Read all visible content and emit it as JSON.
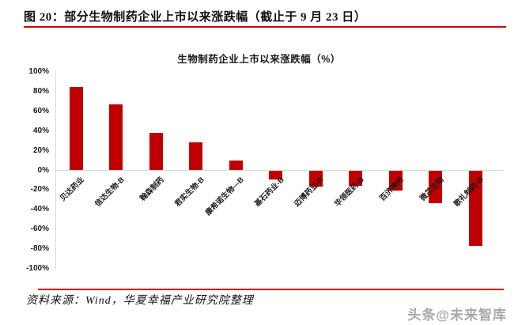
{
  "figure_header": {
    "title": "图 20：部分生物制药企业上市以来涨跌幅（截止于 9 月 23 日）"
  },
  "chart_data": {
    "type": "bar",
    "title": "生物制药企业上市以来涨跌幅（%）",
    "categories": [
      "贝达药业",
      "信达生物-B",
      "翰森制药",
      "君实生物-B",
      "康希诺生物—B",
      "基石药业-B",
      "迈博药业-B",
      "华领医药-B",
      "百济神州",
      "微芯生物",
      "歌礼制药-B"
    ],
    "values": [
      84,
      67,
      38,
      28,
      10,
      -9,
      -16,
      -15,
      -20,
      -33,
      -76
    ],
    "ylim": [
      -100,
      100
    ],
    "ytick_labels": [
      "100%",
      "80%",
      "60%",
      "40%",
      "20%",
      "0%",
      "-20%",
      "-40%",
      "-60%",
      "-80%",
      "-100%"
    ],
    "ytick_values": [
      100,
      80,
      60,
      40,
      20,
      0,
      -20,
      -40,
      -60,
      -80,
      -100
    ],
    "xlabel": "",
    "ylabel": "",
    "grid": false,
    "legend": false,
    "bar_color": "#c00000"
  },
  "footer": {
    "source": "资料来源：Wind，华夏幸福产业研究院整理",
    "watermark": "头条@未来智库"
  },
  "colors": {
    "bar_red": "#c00000",
    "rule_red": "#d40000",
    "axis_gray": "#d9d9d9",
    "watermark_gray": "#a8a8a8"
  }
}
